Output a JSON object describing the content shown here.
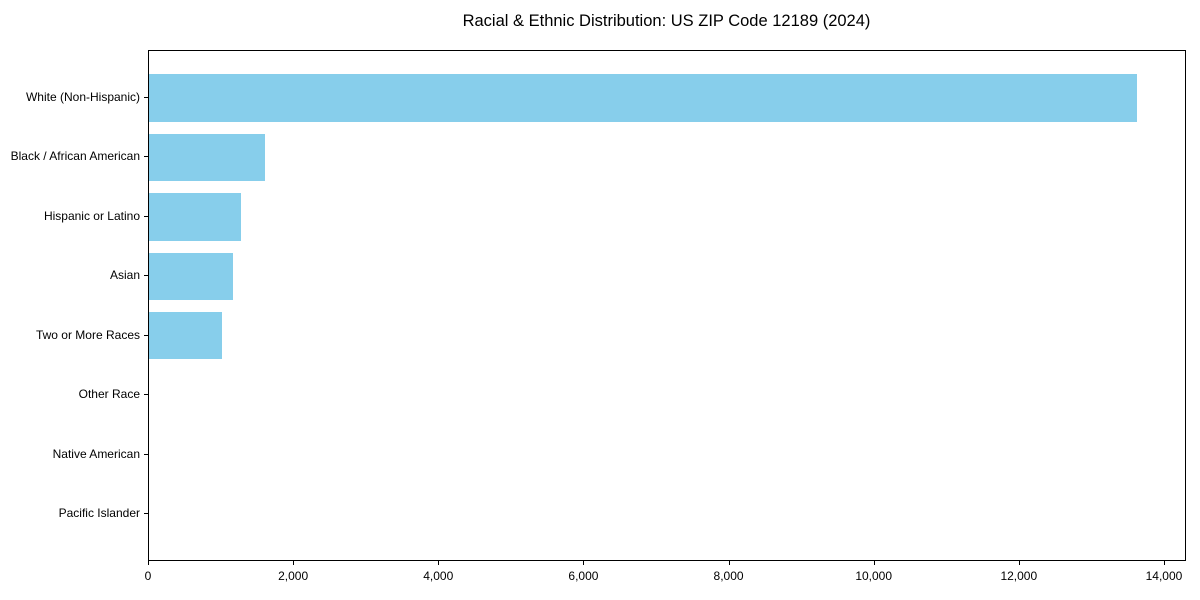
{
  "chart_data": {
    "type": "bar",
    "orientation": "horizontal",
    "title": "Racial & Ethnic Distribution: US ZIP Code 12189 (2024)",
    "categories": [
      "White (Non-Hispanic)",
      "Black / African American",
      "Hispanic or Latino",
      "Asian",
      "Two or More Races",
      "Other Race",
      "Native American",
      "Pacific Islander"
    ],
    "values": [
      13610,
      1595,
      1265,
      1160,
      1000,
      0,
      0,
      0
    ],
    "bar_color": "#87CEEB",
    "xlabel": "",
    "ylabel": "",
    "xlim": [
      0,
      14290
    ],
    "x_ticks": [
      0,
      2000,
      4000,
      6000,
      8000,
      10000,
      12000,
      14000
    ],
    "x_tick_labels": [
      "0",
      "2,000",
      "4,000",
      "6,000",
      "8,000",
      "10,000",
      "12,000",
      "14,000"
    ],
    "grid": false,
    "legend": false
  }
}
